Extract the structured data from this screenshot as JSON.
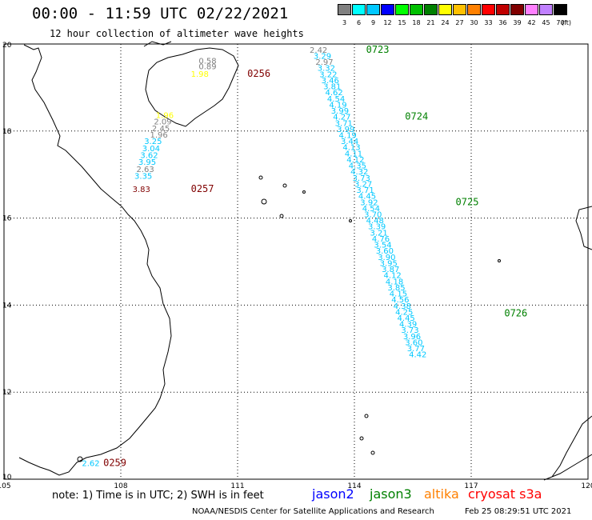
{
  "header": {
    "title": "00:00 - 11:59 UTC 02/22/2021",
    "subtitle": "12 hour collection of altimeter wave heights"
  },
  "legend": {
    "unit": "(ft)",
    "bins": [
      {
        "label": "3",
        "color": "#808080"
      },
      {
        "label": "6",
        "color": "#00ffff"
      },
      {
        "label": "9",
        "color": "#00c8ff"
      },
      {
        "label": "12",
        "color": "#0000ff"
      },
      {
        "label": "15",
        "color": "#00ff00"
      },
      {
        "label": "18",
        "color": "#00c000"
      },
      {
        "label": "21",
        "color": "#008000"
      },
      {
        "label": "24",
        "color": "#ffff00"
      },
      {
        "label": "27",
        "color": "#ffc000"
      },
      {
        "label": "30",
        "color": "#ff8000"
      },
      {
        "label": "33",
        "color": "#ff0000"
      },
      {
        "label": "36",
        "color": "#c00000"
      },
      {
        "label": "39",
        "color": "#800000"
      },
      {
        "label": "42",
        "color": "#ff80ff"
      },
      {
        "label": "45",
        "color": "#c080ff"
      },
      {
        "label": "70",
        "color": "#000000"
      }
    ]
  },
  "axes": {
    "lon_labels": [
      "105",
      "108",
      "111",
      "114",
      "117",
      "120"
    ],
    "lat_labels": [
      "10",
      "12",
      "14",
      "16",
      "18",
      "20"
    ],
    "lon_range": [
      105,
      120
    ],
    "lat_range": [
      10,
      20
    ]
  },
  "tracks": [
    {
      "name": "cryosat s3a",
      "points": [
        {
          "lon": 112.85,
          "lat": 19.8,
          "v": "2.42",
          "color": "#808080"
        },
        {
          "lon": 112.95,
          "lat": 19.66,
          "v": "3.29",
          "color": "#00c8ff"
        },
        {
          "lon": 113.0,
          "lat": 19.52,
          "v": "2.97",
          "color": "#808080"
        },
        {
          "lon": 113.05,
          "lat": 19.38,
          "v": "3.32",
          "color": "#00c8ff"
        },
        {
          "lon": 113.1,
          "lat": 19.24,
          "v": "3.22",
          "color": "#00c8ff"
        },
        {
          "lon": 113.15,
          "lat": 19.1,
          "v": "3.46",
          "color": "#00c8ff"
        },
        {
          "lon": 113.2,
          "lat": 18.96,
          "v": "3.81",
          "color": "#00c8ff"
        },
        {
          "lon": 113.25,
          "lat": 18.82,
          "v": "4.62",
          "color": "#00c8ff"
        },
        {
          "lon": 113.3,
          "lat": 18.68,
          "v": "4.54",
          "color": "#00c8ff"
        },
        {
          "lon": 113.35,
          "lat": 18.54,
          "v": "4.19",
          "color": "#00c8ff"
        },
        {
          "lon": 113.4,
          "lat": 18.4,
          "v": "3.99",
          "color": "#00c8ff"
        },
        {
          "lon": 113.45,
          "lat": 18.26,
          "v": "4.27",
          "color": "#00c8ff"
        },
        {
          "lon": 113.5,
          "lat": 18.12,
          "v": "3.71",
          "color": "#00c8ff"
        },
        {
          "lon": 113.55,
          "lat": 17.98,
          "v": "3.99",
          "color": "#00c8ff"
        },
        {
          "lon": 113.6,
          "lat": 17.84,
          "v": "4.19",
          "color": "#00c8ff"
        },
        {
          "lon": 113.65,
          "lat": 17.7,
          "v": "3.44",
          "color": "#00c8ff"
        },
        {
          "lon": 113.7,
          "lat": 17.56,
          "v": "4.13",
          "color": "#00c8ff"
        },
        {
          "lon": 113.75,
          "lat": 17.42,
          "v": "4.11",
          "color": "#00c8ff"
        },
        {
          "lon": 113.8,
          "lat": 17.28,
          "v": "4.12",
          "color": "#00c8ff"
        },
        {
          "lon": 113.85,
          "lat": 17.14,
          "v": "4.35",
          "color": "#00c8ff"
        },
        {
          "lon": 113.9,
          "lat": 17.0,
          "v": "4.32",
          "color": "#00c8ff"
        },
        {
          "lon": 113.95,
          "lat": 16.86,
          "v": "3.73",
          "color": "#00c8ff"
        },
        {
          "lon": 114.0,
          "lat": 16.72,
          "v": "3.27",
          "color": "#00c8ff"
        },
        {
          "lon": 114.05,
          "lat": 16.58,
          "v": "3.71",
          "color": "#00c8ff"
        },
        {
          "lon": 114.1,
          "lat": 16.44,
          "v": "4.45",
          "color": "#00c8ff"
        },
        {
          "lon": 114.15,
          "lat": 16.3,
          "v": "3.92",
          "color": "#00c8ff"
        },
        {
          "lon": 114.2,
          "lat": 16.16,
          "v": "4.54",
          "color": "#00c8ff"
        },
        {
          "lon": 114.25,
          "lat": 16.02,
          "v": "3.70",
          "color": "#00c8ff"
        },
        {
          "lon": 114.3,
          "lat": 15.88,
          "v": "4.48",
          "color": "#00c8ff"
        },
        {
          "lon": 114.35,
          "lat": 15.74,
          "v": "3.39",
          "color": "#00c8ff"
        },
        {
          "lon": 114.4,
          "lat": 15.6,
          "v": "3.21",
          "color": "#00c8ff"
        },
        {
          "lon": 114.45,
          "lat": 15.46,
          "v": "4.76",
          "color": "#00c8ff"
        },
        {
          "lon": 114.5,
          "lat": 15.32,
          "v": "3.54",
          "color": "#00c8ff"
        },
        {
          "lon": 114.55,
          "lat": 15.18,
          "v": "3.60",
          "color": "#00c8ff"
        },
        {
          "lon": 114.6,
          "lat": 15.04,
          "v": "3.90",
          "color": "#00c8ff"
        },
        {
          "lon": 114.65,
          "lat": 14.9,
          "v": "3.95",
          "color": "#00c8ff"
        },
        {
          "lon": 114.7,
          "lat": 14.76,
          "v": "3.87",
          "color": "#00c8ff"
        },
        {
          "lon": 114.75,
          "lat": 14.62,
          "v": "4.12",
          "color": "#00c8ff"
        },
        {
          "lon": 114.8,
          "lat": 14.48,
          "v": "4.18",
          "color": "#00c8ff"
        },
        {
          "lon": 114.85,
          "lat": 14.34,
          "v": "3.85",
          "color": "#00c8ff"
        },
        {
          "lon": 114.9,
          "lat": 14.2,
          "v": "4.15",
          "color": "#00c8ff"
        },
        {
          "lon": 114.95,
          "lat": 14.06,
          "v": "4.56",
          "color": "#00c8ff"
        },
        {
          "lon": 115.0,
          "lat": 13.92,
          "v": "4.38",
          "color": "#00c8ff"
        },
        {
          "lon": 115.05,
          "lat": 13.78,
          "v": "4.25",
          "color": "#00c8ff"
        },
        {
          "lon": 115.1,
          "lat": 13.64,
          "v": "4.45",
          "color": "#00c8ff"
        },
        {
          "lon": 115.15,
          "lat": 13.5,
          "v": "4.39",
          "color": "#00c8ff"
        },
        {
          "lon": 115.2,
          "lat": 13.36,
          "v": "3.73",
          "color": "#00c8ff"
        },
        {
          "lon": 115.25,
          "lat": 13.22,
          "v": "3.96",
          "color": "#00c8ff"
        },
        {
          "lon": 115.3,
          "lat": 13.08,
          "v": "3.60",
          "color": "#00c8ff"
        },
        {
          "lon": 115.35,
          "lat": 12.94,
          "v": "3.77",
          "color": "#00c8ff"
        },
        {
          "lon": 115.4,
          "lat": 12.8,
          "v": "4.42",
          "color": "#00c8ff"
        }
      ],
      "times": [
        {
          "label": "0723",
          "lon": 114.3,
          "lat": 19.8,
          "color": "#008000"
        },
        {
          "label": "0724",
          "lon": 115.3,
          "lat": 18.26,
          "color": "#008000"
        },
        {
          "label": "0725",
          "lon": 116.6,
          "lat": 16.3,
          "color": "#008000"
        },
        {
          "label": "0726",
          "lon": 117.85,
          "lat": 13.74,
          "color": "#008000"
        }
      ]
    },
    {
      "name": "altika",
      "points": [
        {
          "lon": 110.0,
          "lat": 19.55,
          "v": "0.58",
          "color": "#808080"
        },
        {
          "lon": 110.0,
          "lat": 19.42,
          "v": "0.89",
          "color": "#808080"
        },
        {
          "lon": 109.8,
          "lat": 19.25,
          "v": "1.98",
          "color": "#ffff00"
        },
        {
          "lon": 108.9,
          "lat": 18.3,
          "v": "1.96",
          "color": "#ffff00"
        },
        {
          "lon": 108.85,
          "lat": 18.15,
          "v": "2.09",
          "color": "#808080"
        },
        {
          "lon": 108.8,
          "lat": 18.0,
          "v": "2.45",
          "color": "#808080"
        },
        {
          "lon": 108.75,
          "lat": 17.85,
          "v": "1.96",
          "color": "#808080"
        },
        {
          "lon": 108.6,
          "lat": 17.7,
          "v": "3.25",
          "color": "#00c8ff"
        },
        {
          "lon": 108.55,
          "lat": 17.54,
          "v": "3.04",
          "color": "#00c8ff"
        },
        {
          "lon": 108.5,
          "lat": 17.38,
          "v": "3.62",
          "color": "#00c8ff"
        },
        {
          "lon": 108.45,
          "lat": 17.22,
          "v": "3.95",
          "color": "#00c8ff"
        },
        {
          "lon": 108.4,
          "lat": 17.06,
          "v": "2.63",
          "color": "#808080"
        },
        {
          "lon": 108.35,
          "lat": 16.9,
          "v": "3.35",
          "color": "#00c8ff"
        },
        {
          "lon": 108.3,
          "lat": 16.6,
          "v": "3.83",
          "color": "#800000"
        },
        {
          "lon": 107.0,
          "lat": 10.3,
          "v": "2.62",
          "color": "#00c8ff"
        }
      ],
      "times": [
        {
          "label": "0256",
          "lon": 111.25,
          "lat": 19.25,
          "color": "#800000"
        },
        {
          "label": "0257",
          "lon": 109.8,
          "lat": 16.6,
          "color": "#800000"
        },
        {
          "label": "0259",
          "lon": 107.55,
          "lat": 10.3,
          "color": "#800000"
        }
      ]
    }
  ],
  "footer": {
    "note": "note: 1) Time is in UTC; 2) SWH is in feet",
    "sats": [
      {
        "label": "jason2",
        "color": "#0000ff"
      },
      {
        "label": "jason3",
        "color": "#008000"
      },
      {
        "label": "altika",
        "color": "#ff8000"
      },
      {
        "label": "cryosat s3a",
        "color": "#ff0000"
      }
    ],
    "credit": "NOAA/NESDIS Center for Satellite Applications and Research",
    "timestamp": "Feb 25 08:29:51 UTC 2021"
  }
}
